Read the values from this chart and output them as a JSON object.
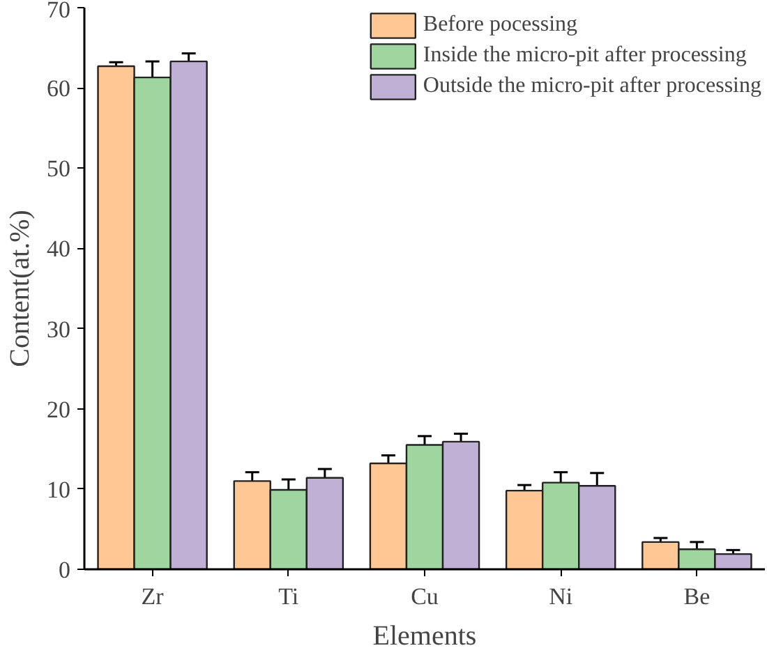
{
  "chart_data": {
    "type": "bar",
    "xlabel": "Elements",
    "ylabel": "Content(at.%)",
    "categories": [
      "Zr",
      "Ti",
      "Cu",
      "Ni",
      "Be"
    ],
    "series": [
      {
        "name": "Before pocessing",
        "color": "#fec794",
        "values": [
          62.7,
          11.0,
          13.2,
          9.8,
          3.4
        ],
        "errors": [
          0.5,
          1.1,
          1.0,
          0.7,
          0.5
        ]
      },
      {
        "name": "Inside the micro-pit after processing",
        "color": "#9fd69f",
        "values": [
          61.3,
          9.9,
          15.5,
          10.8,
          2.5
        ],
        "errors": [
          2.0,
          1.3,
          1.1,
          1.3,
          0.9
        ]
      },
      {
        "name": "Outside the micro-pit after processing",
        "color": "#c1b0d6",
        "values": [
          63.3,
          11.4,
          15.9,
          10.4,
          1.9
        ],
        "errors": [
          1.0,
          1.1,
          1.0,
          1.6,
          0.5
        ]
      }
    ],
    "ylim": [
      0,
      70
    ],
    "yticks": [
      0,
      10,
      20,
      30,
      40,
      50,
      60,
      70
    ],
    "legend": "top right"
  }
}
